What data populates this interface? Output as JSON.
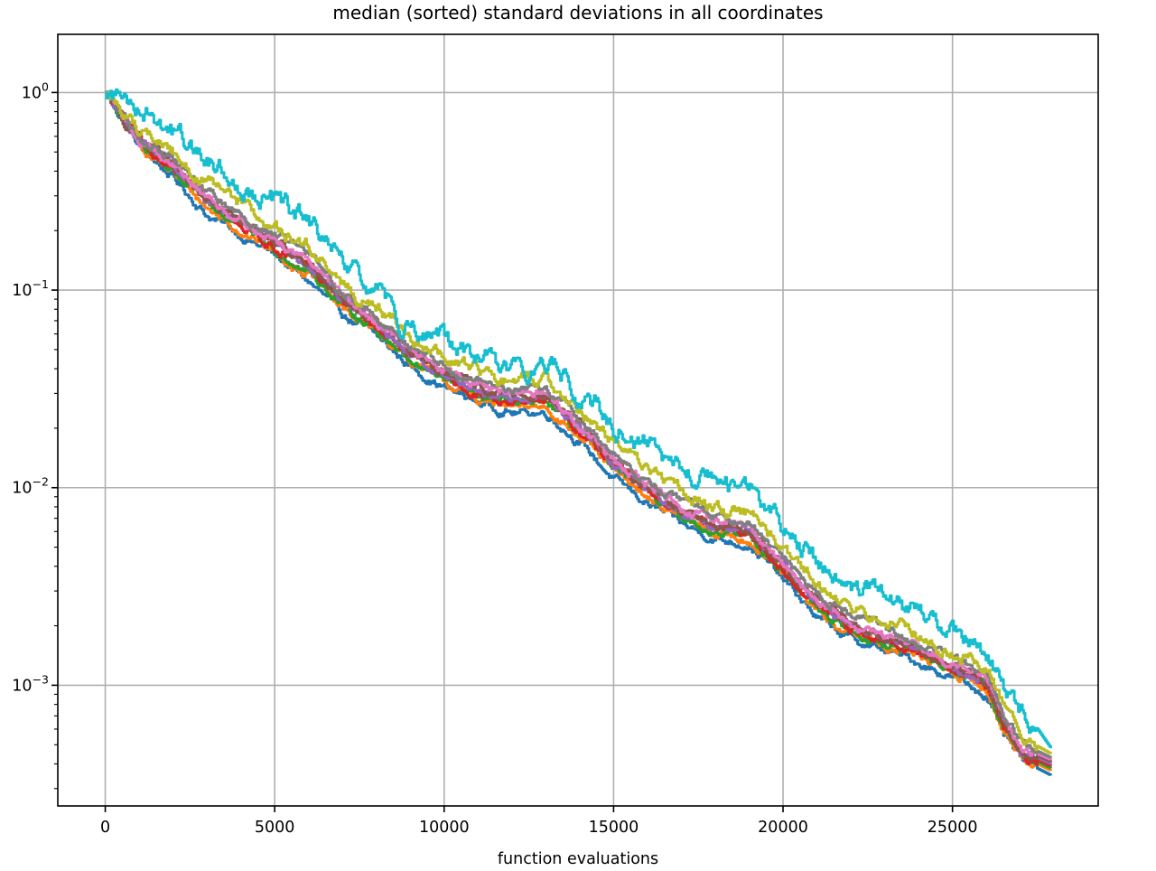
{
  "chart_data": {
    "type": "line",
    "title": "median (sorted) standard deviations in all coordinates",
    "xlabel": "function evaluations",
    "ylabel": "",
    "yscale": "log",
    "xlim": [
      -1400,
      29300
    ],
    "ylim": [
      0.000245,
      1.97
    ],
    "grid": true,
    "legend": "none",
    "xticks": [
      0,
      5000,
      10000,
      15000,
      20000,
      25000
    ],
    "xtick_labels": [
      "0",
      "5000",
      "10000",
      "15000",
      "20000",
      "25000"
    ],
    "yticks": [
      {
        "value": 1,
        "base": "10",
        "exp": "0"
      },
      {
        "value": 0.1,
        "base": "10",
        "exp": "−1"
      },
      {
        "value": 0.01,
        "base": "10",
        "exp": "−2"
      },
      {
        "value": 0.001,
        "base": "10",
        "exp": "−3"
      }
    ],
    "x": [
      0,
      1000,
      2000,
      3000,
      4000,
      5000,
      6000,
      7000,
      8000,
      9000,
      10000,
      11000,
      12000,
      13000,
      14000,
      15000,
      16000,
      17000,
      18000,
      19000,
      20000,
      21000,
      22000,
      23000,
      24000,
      25000,
      26000,
      26500,
      27000,
      27900
    ],
    "series": [
      {
        "color": "#1f77b4",
        "values": [
          1.0,
          0.53,
          0.37,
          0.24,
          0.19,
          0.15,
          0.11,
          0.075,
          0.058,
          0.041,
          0.032,
          0.027,
          0.024,
          0.024,
          0.017,
          0.011,
          0.0083,
          0.0065,
          0.0055,
          0.0052,
          0.0034,
          0.0022,
          0.0017,
          0.0015,
          0.0013,
          0.0011,
          0.0009,
          0.00055,
          0.00042,
          0.00035
        ]
      },
      {
        "color": "#ff7f0e",
        "values": [
          1.0,
          0.54,
          0.39,
          0.26,
          0.2,
          0.155,
          0.12,
          0.08,
          0.061,
          0.044,
          0.034,
          0.028,
          0.025,
          0.026,
          0.018,
          0.012,
          0.009,
          0.0069,
          0.0058,
          0.0055,
          0.0036,
          0.0023,
          0.0018,
          0.0016,
          0.0014,
          0.00115,
          0.00095,
          0.00058,
          0.00044,
          0.00037
        ]
      },
      {
        "color": "#2ca02c",
        "values": [
          1.0,
          0.55,
          0.4,
          0.27,
          0.21,
          0.16,
          0.125,
          0.083,
          0.063,
          0.045,
          0.035,
          0.029,
          0.026,
          0.027,
          0.019,
          0.0125,
          0.0093,
          0.0071,
          0.006,
          0.0057,
          0.0037,
          0.0024,
          0.0019,
          0.0016,
          0.0014,
          0.0012,
          0.00098,
          0.0006,
          0.00045,
          0.00038
        ]
      },
      {
        "color": "#d62728",
        "values": [
          1.0,
          0.56,
          0.41,
          0.275,
          0.215,
          0.165,
          0.13,
          0.086,
          0.065,
          0.047,
          0.036,
          0.03,
          0.027,
          0.028,
          0.0195,
          0.013,
          0.0096,
          0.0073,
          0.0062,
          0.0059,
          0.0038,
          0.0025,
          0.00195,
          0.00165,
          0.00145,
          0.00122,
          0.001,
          0.00062,
          0.00046,
          0.00039
        ]
      },
      {
        "color": "#9467bd",
        "values": [
          1.0,
          0.57,
          0.42,
          0.28,
          0.22,
          0.17,
          0.133,
          0.088,
          0.067,
          0.048,
          0.037,
          0.031,
          0.028,
          0.029,
          0.02,
          0.0133,
          0.0099,
          0.0075,
          0.0064,
          0.0061,
          0.0039,
          0.0026,
          0.002,
          0.0017,
          0.0015,
          0.00125,
          0.00103,
          0.00064,
          0.00047,
          0.0004
        ]
      },
      {
        "color": "#8c564b",
        "values": [
          1.0,
          0.575,
          0.425,
          0.285,
          0.225,
          0.172,
          0.136,
          0.09,
          0.068,
          0.049,
          0.038,
          0.032,
          0.0285,
          0.0295,
          0.0205,
          0.0136,
          0.01,
          0.0077,
          0.0065,
          0.0062,
          0.004,
          0.00265,
          0.00205,
          0.00175,
          0.00152,
          0.00128,
          0.00105,
          0.00065,
          0.00048,
          0.00041
        ]
      },
      {
        "color": "#e377c2",
        "values": [
          1.0,
          0.58,
          0.43,
          0.29,
          0.23,
          0.175,
          0.14,
          0.092,
          0.07,
          0.05,
          0.039,
          0.033,
          0.029,
          0.03,
          0.021,
          0.014,
          0.0103,
          0.0079,
          0.0067,
          0.0064,
          0.0041,
          0.0027,
          0.0021,
          0.0018,
          0.00155,
          0.0013,
          0.00107,
          0.00067,
          0.00049,
          0.00042
        ]
      },
      {
        "color": "#7f7f7f",
        "values": [
          1.0,
          0.6,
          0.45,
          0.31,
          0.245,
          0.185,
          0.15,
          0.097,
          0.073,
          0.053,
          0.041,
          0.035,
          0.031,
          0.032,
          0.022,
          0.0148,
          0.0108,
          0.0085,
          0.0072,
          0.0068,
          0.0044,
          0.0029,
          0.0023,
          0.0019,
          0.00165,
          0.0014,
          0.00112,
          0.0007,
          0.00051,
          0.00043
        ]
      },
      {
        "color": "#bcbd22",
        "values": [
          1.0,
          0.65,
          0.5,
          0.34,
          0.27,
          0.2,
          0.165,
          0.105,
          0.08,
          0.057,
          0.045,
          0.038,
          0.034,
          0.035,
          0.025,
          0.017,
          0.0125,
          0.0095,
          0.0078,
          0.0074,
          0.0048,
          0.0032,
          0.0026,
          0.0021,
          0.0018,
          0.0015,
          0.0012,
          0.00078,
          0.00055,
          0.00045
        ]
      },
      {
        "color": "#17becf",
        "values": [
          1.0,
          0.9,
          0.62,
          0.46,
          0.34,
          0.27,
          0.22,
          0.13,
          0.095,
          0.066,
          0.054,
          0.045,
          0.039,
          0.043,
          0.032,
          0.021,
          0.016,
          0.012,
          0.0105,
          0.0098,
          0.0063,
          0.0042,
          0.0031,
          0.0027,
          0.0022,
          0.0018,
          0.00145,
          0.001,
          0.0008,
          0.00048
        ]
      }
    ]
  }
}
